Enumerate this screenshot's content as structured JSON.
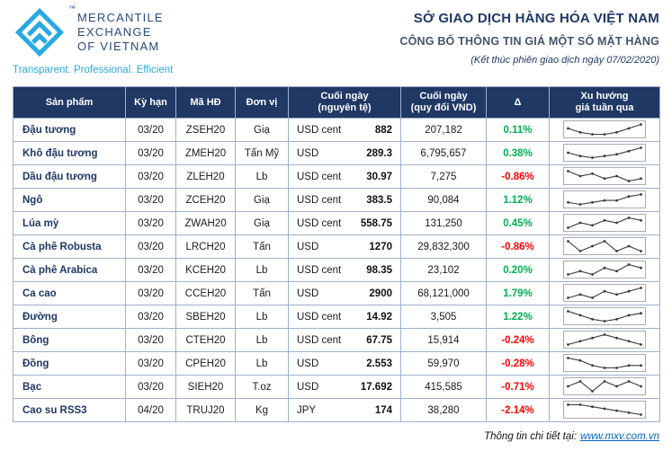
{
  "brand": {
    "trademark": "™",
    "name_lines": [
      "MERCANTILE",
      "EXCHANGE",
      "OF VIETNAM"
    ],
    "tagline": "Transparent. Professional. Efficient"
  },
  "header": {
    "title": "SỞ GIAO DỊCH HÀNG HÓA VIỆT NAM",
    "subtitle": "CÔNG BỐ THÔNG TIN GIÁ MỘT SỐ MẶT HÀNG",
    "session_note": "(Kết thúc phiên giao dịch ngày 07/02/2020)"
  },
  "colors": {
    "navy": "#1F3864",
    "accent_cyan": "#29A9E0",
    "subtitle_gray": "#44546A",
    "positive": "#00B050",
    "negative": "#FF0000",
    "table_border": "#9EB0CE",
    "link": "#0563C1"
  },
  "table": {
    "columns": [
      {
        "id": "product",
        "label": "Sản phẩm"
      },
      {
        "id": "term",
        "label": "Kỳ hạn"
      },
      {
        "id": "code",
        "label": "Mã HĐ"
      },
      {
        "id": "unit",
        "label": "Đơn vị"
      },
      {
        "id": "close_native",
        "label": "Cuối ngày\n(nguyên tệ)"
      },
      {
        "id": "close_vnd",
        "label": "Cuối ngày\n(quy đổi VND)"
      },
      {
        "id": "delta",
        "label": "Δ"
      },
      {
        "id": "trend",
        "label": "Xu hướng\ngiá tuần qua"
      }
    ],
    "rows": [
      {
        "product": "Đậu tương",
        "term": "03/20",
        "code": "ZSEH20",
        "unit": "Giạ",
        "currency": "USD cent",
        "close_native": "882",
        "close_vnd": "207,182",
        "delta": "0.11%",
        "trend": [
          5,
          3,
          2,
          2,
          3,
          5,
          7
        ]
      },
      {
        "product": "Khô đậu tương",
        "term": "03/20",
        "code": "ZMEH20",
        "unit": "Tấn Mỹ",
        "currency": "USD",
        "close_native": "289.3",
        "close_vnd": "6,795,657",
        "delta": "0.38%",
        "trend": [
          4,
          2,
          1,
          2,
          3,
          5,
          7
        ]
      },
      {
        "product": "Dầu đậu tương",
        "term": "03/20",
        "code": "ZLEH20",
        "unit": "Lb",
        "currency": "USD cent",
        "close_native": "30.97",
        "close_vnd": "7,275",
        "delta": "-0.86%",
        "trend": [
          7,
          5,
          6,
          4,
          5,
          3,
          4
        ]
      },
      {
        "product": "Ngô",
        "term": "03/20",
        "code": "ZCEH20",
        "unit": "Giạ",
        "currency": "USD cent",
        "close_native": "383.5",
        "close_vnd": "90,084",
        "delta": "1.12%",
        "trend": [
          3,
          2,
          3,
          4,
          4,
          6,
          7
        ]
      },
      {
        "product": "Lúa mỳ",
        "term": "03/20",
        "code": "ZWAH20",
        "unit": "Giạ",
        "currency": "USD cent",
        "close_native": "558.75",
        "close_vnd": "131,250",
        "delta": "0.45%",
        "trend": [
          3,
          5,
          4,
          6,
          5,
          7,
          6
        ]
      },
      {
        "product": "Cà phê Robusta",
        "term": "03/20",
        "code": "LRCH20",
        "unit": "Tấn",
        "currency": "USD",
        "close_native": "1270",
        "close_vnd": "29,832,300",
        "delta": "-0.86%",
        "trend": [
          6,
          4,
          5,
          6,
          4,
          5,
          4
        ]
      },
      {
        "product": "Cà phê Arabica",
        "term": "03/20",
        "code": "KCEH20",
        "unit": "Lb",
        "currency": "USD cent",
        "close_native": "98.35",
        "close_vnd": "23,102",
        "delta": "0.20%",
        "trend": [
          3,
          4,
          3,
          5,
          4,
          6,
          5
        ]
      },
      {
        "product": "Ca cao",
        "term": "03/20",
        "code": "CCEH20",
        "unit": "Tấn",
        "currency": "USD",
        "close_native": "2900",
        "close_vnd": "68,121,000",
        "delta": "1.79%",
        "trend": [
          4,
          5,
          4,
          6,
          5,
          6,
          7
        ]
      },
      {
        "product": "Đường",
        "term": "03/20",
        "code": "SBEH20",
        "unit": "Lb",
        "currency": "USD cent",
        "close_native": "14.92",
        "close_vnd": "3,505",
        "delta": "1.22%",
        "trend": [
          7,
          5,
          3,
          2,
          3,
          5,
          6
        ]
      },
      {
        "product": "Bông",
        "term": "03/20",
        "code": "CTEH20",
        "unit": "Lb",
        "currency": "USD cent",
        "close_native": "67.75",
        "close_vnd": "15,914",
        "delta": "-0.24%",
        "trend": [
          4,
          5,
          6,
          7,
          6,
          5,
          4
        ]
      },
      {
        "product": "Đồng",
        "term": "03/20",
        "code": "CPEH20",
        "unit": "Lb",
        "currency": "USD",
        "close_native": "2.553",
        "close_vnd": "59,970",
        "delta": "-0.28%",
        "trend": [
          7,
          6,
          4,
          3,
          3,
          4,
          4
        ]
      },
      {
        "product": "Bạc",
        "term": "03/20",
        "code": "SIEH20",
        "unit": "T.oz",
        "currency": "USD",
        "close_native": "17.692",
        "close_vnd": "415,585",
        "delta": "-0.71%",
        "trend": [
          5,
          6,
          4,
          6,
          5,
          6,
          5
        ]
      },
      {
        "product": "Cao su RSS3",
        "term": "04/20",
        "code": "TRUJ20",
        "unit": "Kg",
        "currency": "JPY",
        "close_native": "174",
        "close_vnd": "38,280",
        "delta": "-2.14%",
        "trend": [
          7,
          7,
          6,
          5,
          4,
          3,
          2
        ]
      }
    ]
  },
  "footer": {
    "label": "Thông tin chi tiết tại:",
    "link": "www.mxv.com.vn"
  }
}
